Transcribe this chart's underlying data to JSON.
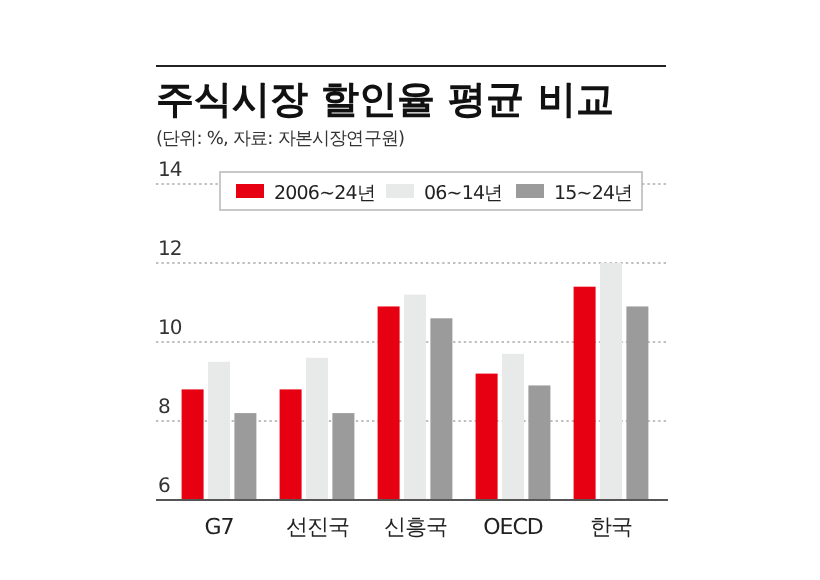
{
  "chart_data": {
    "type": "bar",
    "title": "주식시장 할인율 평균 비교",
    "subtitle": "(단위: %, 자료: 자본시장연구원)",
    "categories": [
      "G7",
      "선진국",
      "신흥국",
      "OECD",
      "한국"
    ],
    "series": [
      {
        "name": "2006~24년",
        "color": "#e60012",
        "values": [
          8.8,
          8.8,
          10.9,
          9.2,
          11.4
        ]
      },
      {
        "name": "06~14년",
        "color": "#e8eaea",
        "values": [
          9.5,
          9.6,
          11.2,
          9.7,
          12.0
        ]
      },
      {
        "name": "15~24년",
        "color": "#9b9b9b",
        "values": [
          8.2,
          8.2,
          10.6,
          8.9,
          10.9
        ]
      }
    ],
    "ylim": [
      6,
      14
    ],
    "yticks": [
      6,
      8,
      10,
      12,
      14
    ],
    "grid": "y",
    "legend": "top"
  }
}
